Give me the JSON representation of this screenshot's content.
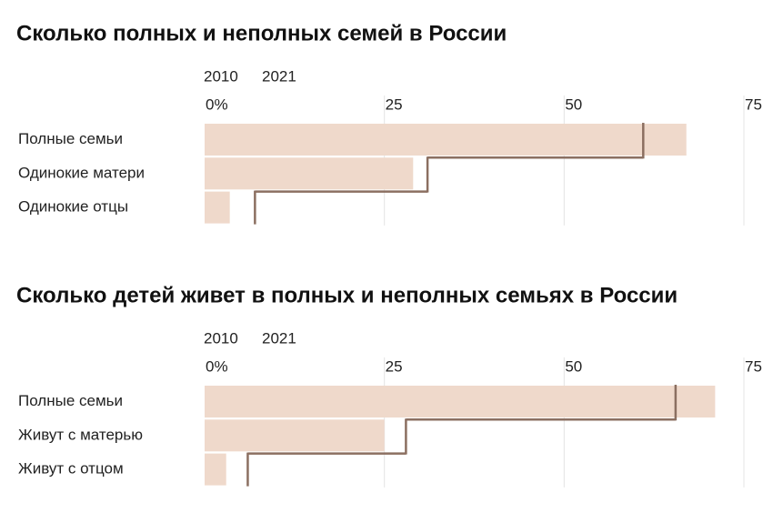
{
  "chart_data": [
    {
      "type": "bar",
      "title": "Сколько полных и неполных семей в России",
      "categories": [
        "Полные семьи",
        "Одинокие матери",
        "Одинокие отцы"
      ],
      "series": [
        {
          "name": "2010",
          "color": "#efd9cb",
          "legend_color": "#e6c9b5",
          "values": [
            67,
            29,
            3.5
          ]
        },
        {
          "name": "2021",
          "color": "#8b6f61",
          "style": "step",
          "values": [
            61,
            31,
            7
          ]
        }
      ],
      "xlim": [
        0,
        75
      ],
      "xticks": [
        {
          "value": 0,
          "label": "0%"
        },
        25,
        50,
        75
      ],
      "grid": true
    },
    {
      "type": "bar",
      "title": "Сколько детей живет в полных и неполных семьях в России",
      "categories": [
        "Полные семьи",
        "Живут с матерью",
        "Живут с отцом"
      ],
      "series": [
        {
          "name": "2010",
          "color": "#efd9cb",
          "legend_color": "#e6c9b5",
          "values": [
            71,
            25,
            3
          ]
        },
        {
          "name": "2021",
          "color": "#8b6f61",
          "style": "step",
          "values": [
            65.5,
            28,
            6
          ]
        }
      ],
      "xlim": [
        0,
        75
      ],
      "xticks": [
        {
          "value": 0,
          "label": "0%"
        },
        25,
        50,
        75
      ],
      "grid": true
    }
  ]
}
